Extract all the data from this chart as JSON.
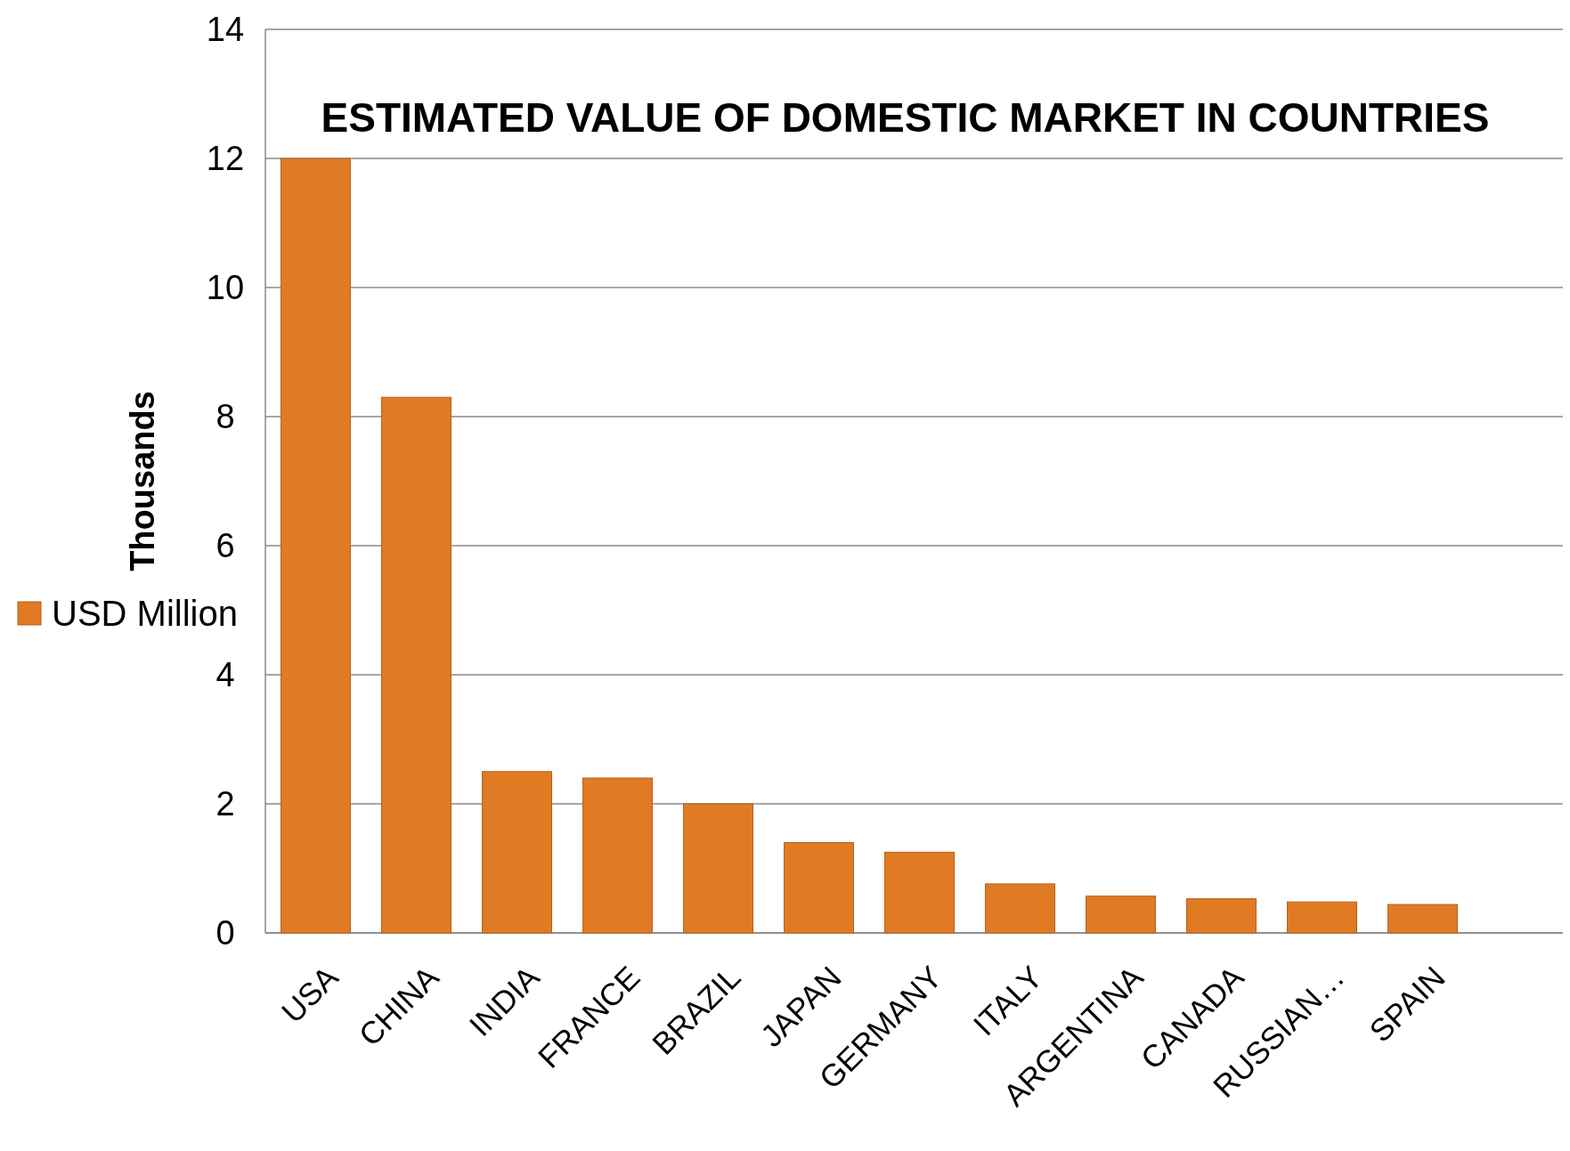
{
  "chart_data": {
    "type": "bar",
    "title": "ESTIMATED VALUE OF DOMESTIC MARKET IN COUNTRIES",
    "ylabel": "Thousands",
    "categories": [
      "USA",
      "CHINA",
      "INDIA",
      "FRANCE",
      "BRAZIL",
      "JAPAN",
      "GERMANY",
      "ITALY",
      "ARGENTINA",
      "CANADA",
      "RUSSIAN…",
      "SPAIN"
    ],
    "series": [
      {
        "name": "USD Million",
        "color": "#e07b24",
        "values": [
          12,
          8.3,
          2.5,
          2.4,
          2,
          1.4,
          1.25,
          0.76,
          0.57,
          0.53,
          0.48,
          0.44
        ]
      }
    ],
    "ylim": [
      0,
      14
    ],
    "yticks": [
      0,
      2,
      4,
      6,
      8,
      10,
      12,
      14
    ],
    "grid": "y",
    "legend": "left"
  }
}
